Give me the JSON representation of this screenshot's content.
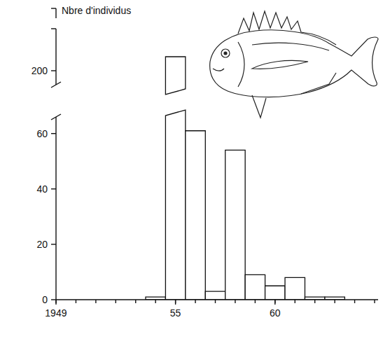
{
  "chart_data": {
    "type": "histogram",
    "y_label": "Nbre d'individus",
    "bins": [
      1953.5,
      1954.5,
      1955.5,
      1956.5,
      1957.5,
      1958.5,
      1959.5,
      1960.5,
      1961.5,
      1962.5,
      1963.5
    ],
    "values": [
      1,
      205,
      61,
      3,
      54,
      9,
      5,
      8,
      1,
      1
    ],
    "color": "#ffffff",
    "xlim": [
      1949,
      1965
    ],
    "xticks": [
      1949,
      {
        "value": 1955,
        "label": "55"
      },
      {
        "value": 1960,
        "label": "60"
      }
    ],
    "ylim": [
      0,
      215
    ],
    "ybreak": [
      66,
      195
    ],
    "yticks": [
      0,
      20,
      40,
      60,
      200
    ],
    "grid": false
  }
}
